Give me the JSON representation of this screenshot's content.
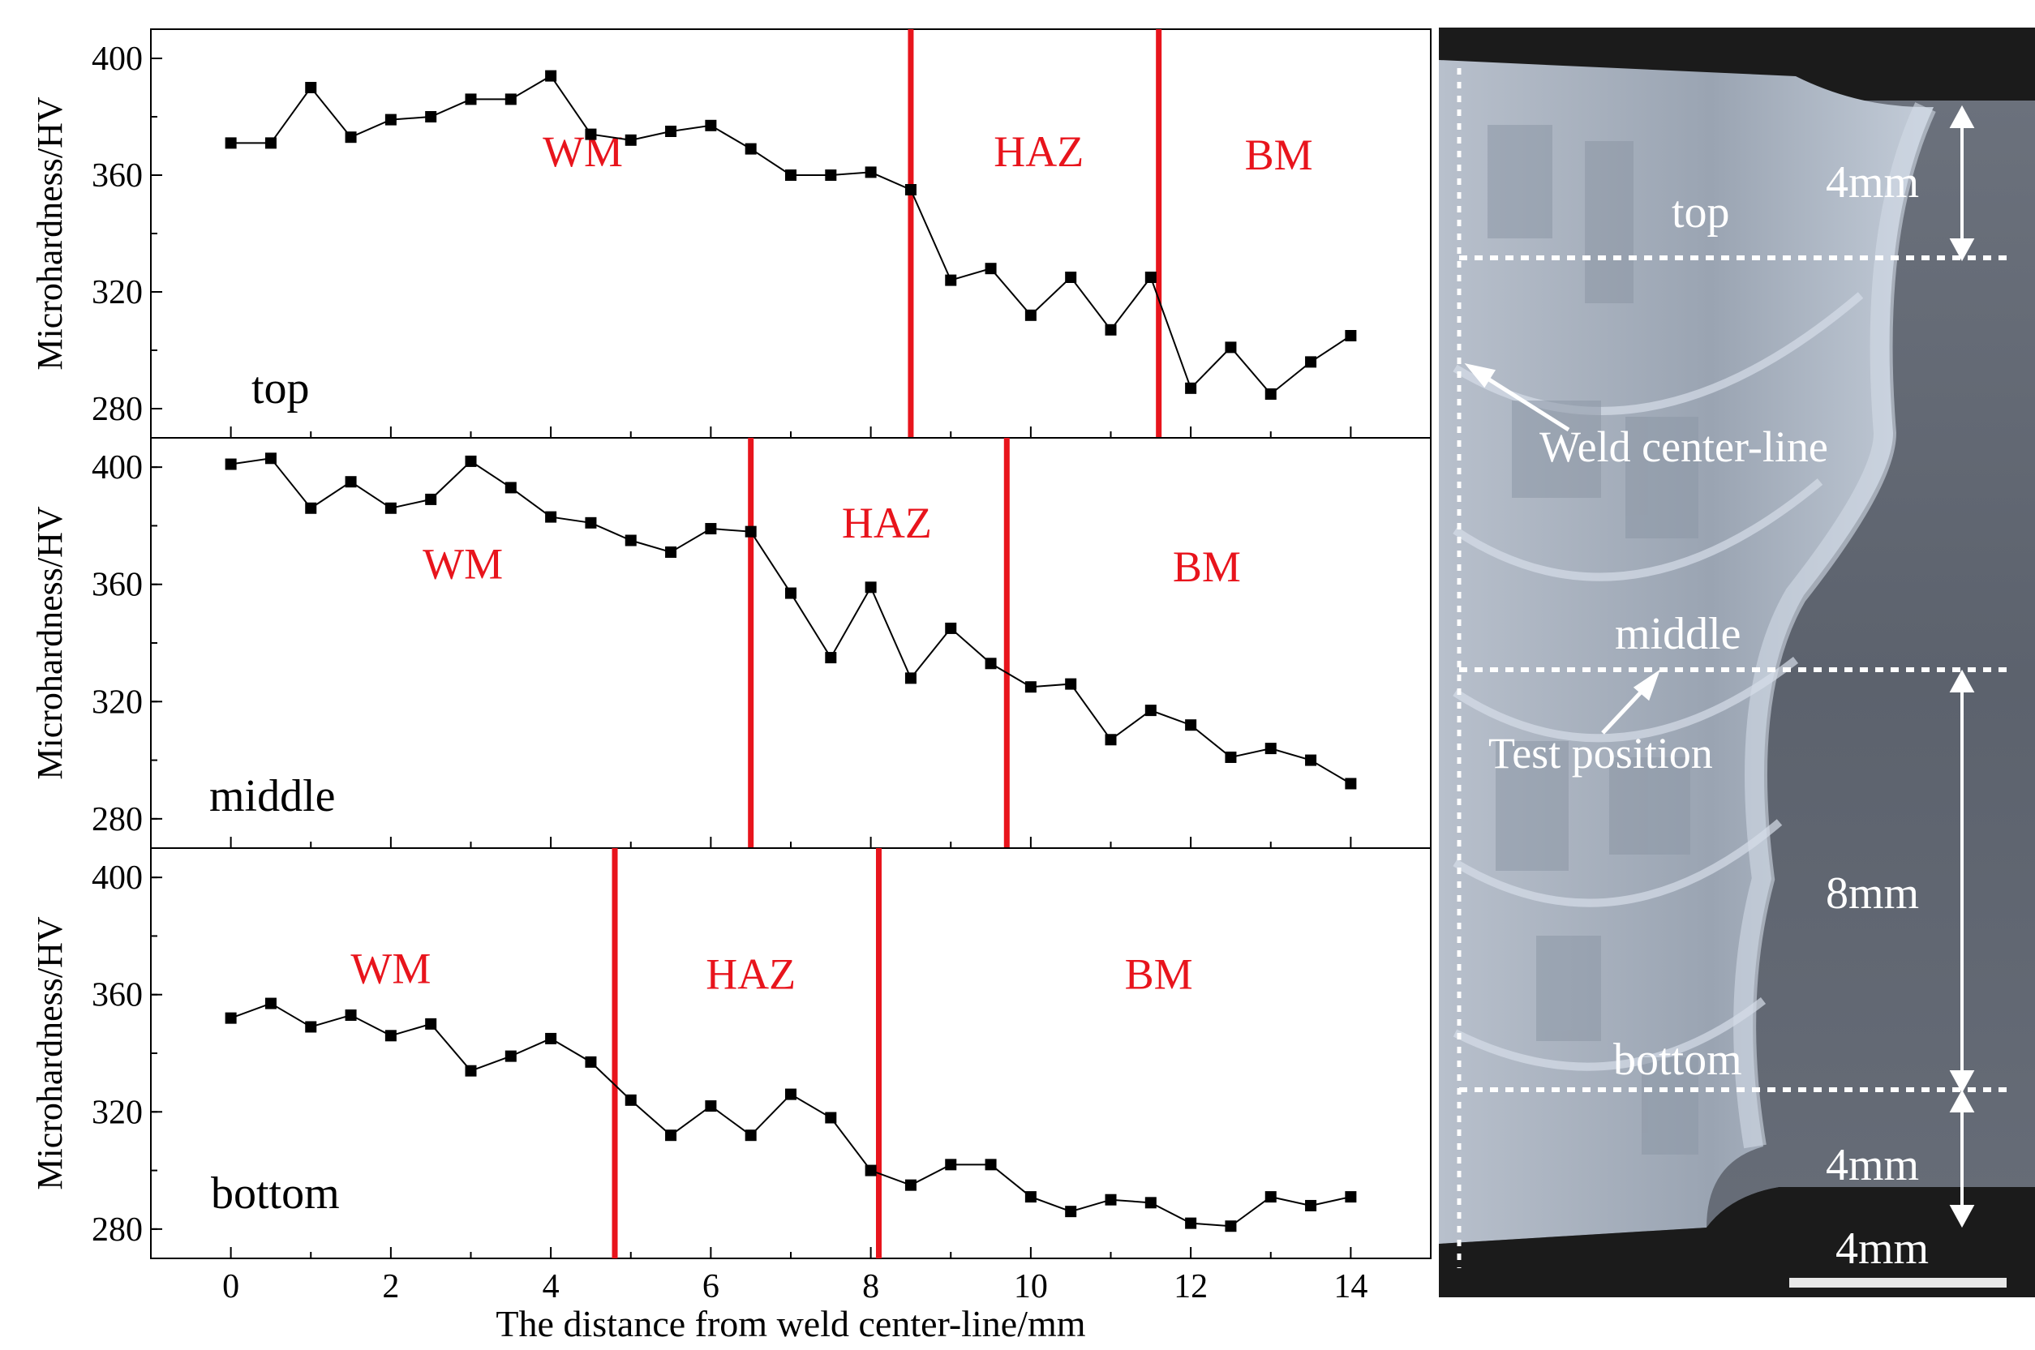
{
  "chart_data": [
    {
      "type": "line",
      "panel_label": "top",
      "ylabel": "Microhardness/HV",
      "xlim": [
        -1,
        15
      ],
      "ylim": [
        270,
        410
      ],
      "yticks": [
        280,
        320,
        360,
        400
      ],
      "x": [
        0,
        0.5,
        1,
        1.5,
        2,
        2.5,
        3,
        3.5,
        4,
        4.5,
        5,
        5.5,
        6,
        6.5,
        7,
        7.5,
        8,
        8.5,
        9,
        9.5,
        10,
        10.5,
        11,
        11.5,
        12,
        12.5,
        13,
        13.5,
        14
      ],
      "values": [
        371,
        371,
        390,
        373,
        379,
        380,
        386,
        386,
        394,
        374,
        372,
        375,
        377,
        369,
        360,
        360,
        361,
        355,
        324,
        328,
        312,
        325,
        307,
        325,
        287,
        301,
        285,
        296,
        305
      ],
      "boundaries": [
        8.5,
        11.6
      ],
      "zones": [
        {
          "label": "WM",
          "x": 4.4,
          "y": 363
        },
        {
          "label": "HAZ",
          "x": 10.1,
          "y": 363
        },
        {
          "label": "BM",
          "x": 13.1,
          "y": 362
        }
      ],
      "line_color": "#000000",
      "boundary_color": "#e8141c"
    },
    {
      "type": "line",
      "panel_label": "middle",
      "ylabel": "Microhardness/HV",
      "xlim": [
        -1,
        15
      ],
      "ylim": [
        270,
        410
      ],
      "yticks": [
        280,
        320,
        360,
        400
      ],
      "x": [
        0,
        0.5,
        1,
        1.5,
        2,
        2.5,
        3,
        3.5,
        4,
        4.5,
        5,
        5.5,
        6,
        6.5,
        7,
        7.5,
        8,
        8.5,
        9,
        9.5,
        10,
        10.5,
        11,
        11.5,
        12,
        12.5,
        13,
        13.5,
        14
      ],
      "values": [
        401,
        403,
        386,
        395,
        386,
        389,
        402,
        393,
        383,
        381,
        375,
        371,
        379,
        378,
        357,
        335,
        359,
        328,
        345,
        333,
        325,
        326,
        307,
        317,
        312,
        301,
        304,
        300,
        292
      ],
      "boundaries": [
        6.5,
        9.7
      ],
      "zones": [
        {
          "label": "WM",
          "x": 2.9,
          "y": 362
        },
        {
          "label": "HAZ",
          "x": 8.2,
          "y": 376
        },
        {
          "label": "BM",
          "x": 12.2,
          "y": 361
        }
      ],
      "line_color": "#000000",
      "boundary_color": "#e8141c"
    },
    {
      "type": "line",
      "panel_label": "bottom",
      "ylabel": "Microhardness/HV",
      "xlabel": "The distance from weld center-line/mm",
      "xlim": [
        -1,
        15
      ],
      "ylim": [
        270,
        410
      ],
      "xticks": [
        0,
        2,
        4,
        6,
        8,
        10,
        12,
        14
      ],
      "yticks": [
        280,
        320,
        360,
        400
      ],
      "x": [
        0,
        0.5,
        1,
        1.5,
        2,
        2.5,
        3,
        3.5,
        4,
        4.5,
        5,
        5.5,
        6,
        6.5,
        7,
        7.5,
        8,
        8.5,
        9,
        9.5,
        10,
        10.5,
        11,
        11.5,
        12,
        12.5,
        13,
        13.5,
        14
      ],
      "values": [
        352,
        357,
        349,
        353,
        346,
        350,
        334,
        339,
        345,
        337,
        324,
        312,
        322,
        312,
        326,
        318,
        300,
        295,
        302,
        302,
        291,
        286,
        290,
        289,
        282,
        281,
        291,
        288,
        291
      ],
      "boundaries": [
        4.8,
        8.1
      ],
      "zones": [
        {
          "label": "WM",
          "x": 2.0,
          "y": 364
        },
        {
          "label": "HAZ",
          "x": 6.5,
          "y": 362
        },
        {
          "label": "BM",
          "x": 11.6,
          "y": 362
        }
      ],
      "line_color": "#000000",
      "boundary_color": "#e8141c"
    }
  ],
  "micrograph": {
    "labels": {
      "top": "top",
      "middle": "middle",
      "bottom": "bottom",
      "top_depth": "4mm",
      "middle_depth": "8mm",
      "bottom_depth": "4mm",
      "scale_bar": "4mm",
      "center_line": "Weld center-line",
      "test_position": "Test position"
    },
    "colors": {
      "background": "#5f6570",
      "weld": "#aeb7c4",
      "annotation": "#ffffff"
    }
  }
}
